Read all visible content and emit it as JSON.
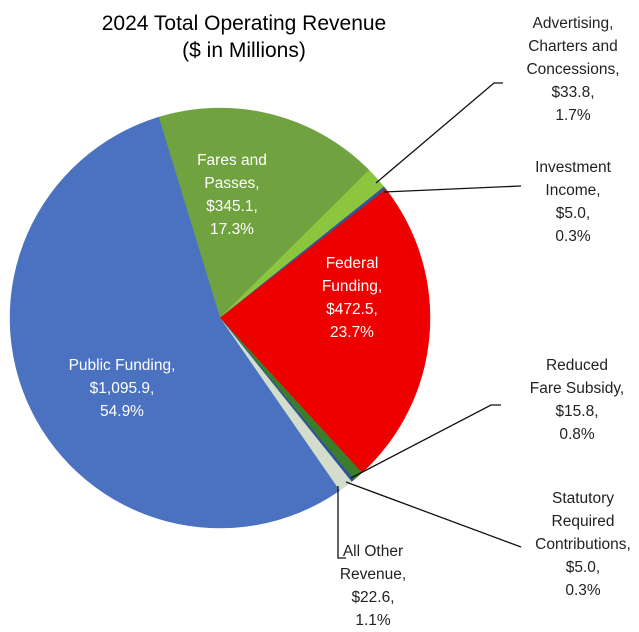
{
  "chart_data": {
    "type": "pie",
    "title": "2024 Total Operating Revenue",
    "subtitle": "($ in Millions)",
    "categories": [
      "Fares and Passes,",
      "Advertising, Charters and Concessions,",
      "Investment Income,",
      "Federal Funding,",
      "Reduced Fare Subsidy,",
      "Statutory Required Contributions,",
      "All Other Revenue,",
      "Public Funding,"
    ],
    "values": [
      345.1,
      33.8,
      5.0,
      472.5,
      15.8,
      5.0,
      22.6,
      1095.9
    ],
    "value_labels": [
      "$345.1,",
      "$33.8,",
      "$5.0,",
      "$472.5,",
      "$15.8,",
      "$5.0,",
      "$22.6,",
      "$1,095.9,"
    ],
    "percents": [
      17.3,
      1.7,
      0.3,
      23.7,
      0.8,
      0.3,
      1.1,
      54.9
    ],
    "percent_labels": [
      "17.3%",
      "1.7%",
      "0.3%",
      "23.7%",
      "0.8%",
      "0.3%",
      "1.1%",
      "54.9%"
    ],
    "colors": [
      "#70a33f",
      "#8cc63f",
      "#2f5597",
      "#ee0000",
      "#3b7d2b",
      "#2f5597",
      "#d4dccb",
      "#4a72c0"
    ]
  }
}
